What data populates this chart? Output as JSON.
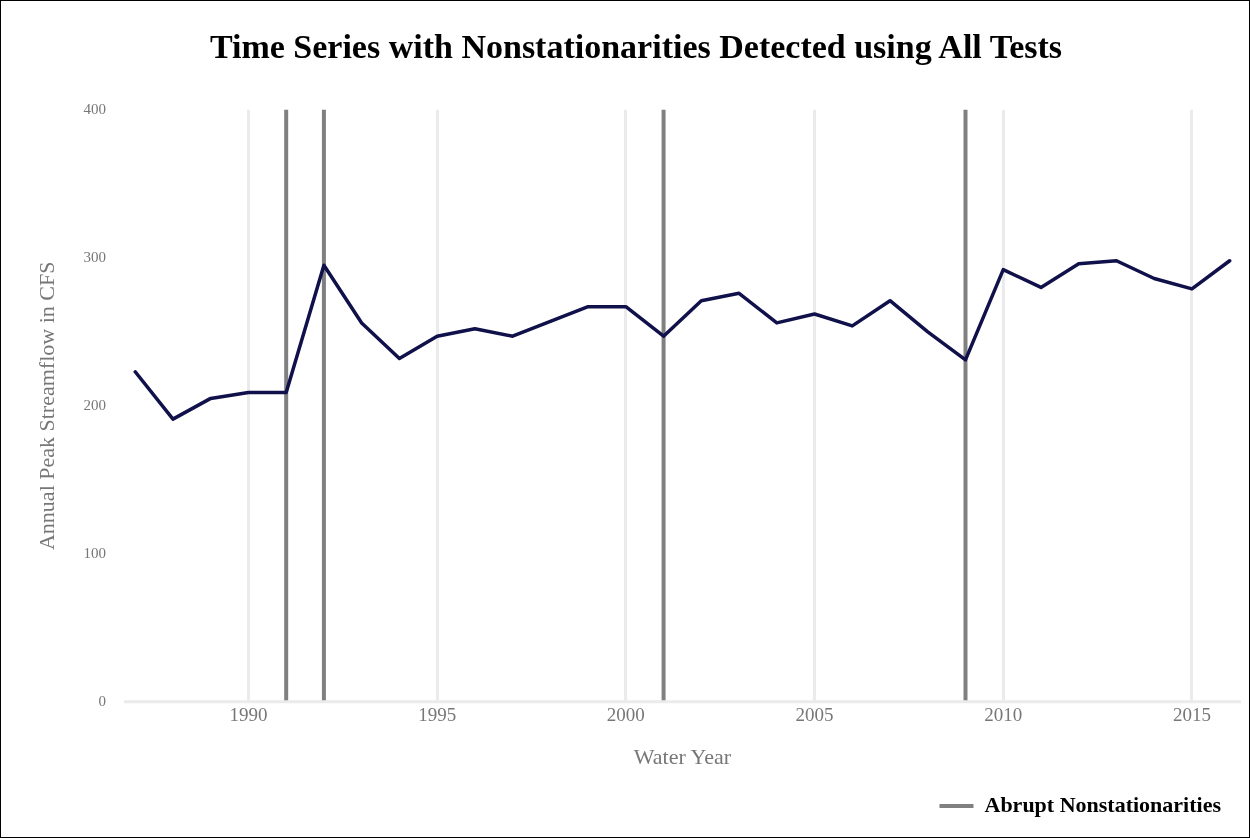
{
  "chart_data": {
    "type": "line",
    "title": "Time Series with Nonstationarities Detected using All Tests",
    "xlabel": "Water Year",
    "ylabel": "Annual Peak Streamflow in CFS",
    "x": [
      1987,
      1988,
      1989,
      1990,
      1991,
      1992,
      1993,
      1994,
      1995,
      1996,
      1997,
      1998,
      1999,
      2000,
      2001,
      2002,
      2003,
      2004,
      2005,
      2006,
      2007,
      2008,
      2009,
      2010,
      2011,
      2012,
      2013,
      2014,
      2015,
      2016
    ],
    "series": [
      {
        "color": "#10104a",
        "values": [
          223,
          191,
          205,
          209,
          209,
          295,
          256,
          232,
          247,
          252,
          247,
          257,
          267,
          267,
          247,
          271,
          276,
          256,
          262,
          254,
          271,
          250,
          231,
          292,
          280,
          296,
          298,
          286,
          279,
          298
        ]
      }
    ],
    "xlim": [
      1986.7,
      2016.3
    ],
    "xticks": [
      1990,
      1995,
      2000,
      2005,
      2010,
      2015
    ],
    "ylim": [
      0,
      400
    ],
    "yticks": [
      0,
      100,
      200,
      300,
      400
    ],
    "ref_lines": [
      {
        "axis": "x",
        "value": 1991,
        "label": "Abrupt Nonstationarities",
        "color": "#808080"
      },
      {
        "axis": "x",
        "value": 1992,
        "color": "#808080"
      },
      {
        "axis": "x",
        "value": 2001,
        "color": "#808080"
      },
      {
        "axis": "x",
        "value": 2009,
        "color": "#808080"
      }
    ],
    "grid": "x",
    "legend": "bottom right",
    "marker": "none",
    "line_style": "solid"
  }
}
